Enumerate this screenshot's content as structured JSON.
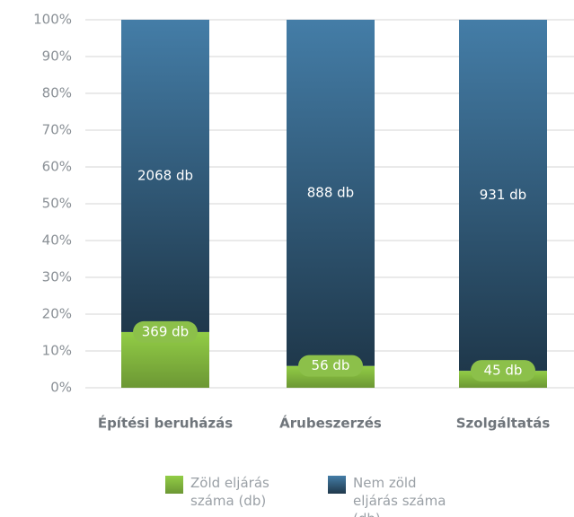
{
  "chart_data": {
    "type": "bar",
    "stacking": "percent",
    "categories": [
      "Építési beruházás",
      "Árubeszerzés",
      "Szolgáltatás"
    ],
    "series": [
      {
        "name": "Zöld eljárás száma (db)",
        "color": "#7fb23d",
        "values": [
          369,
          56,
          45
        ],
        "value_labels": [
          "369 db",
          "56 db",
          "45 db"
        ]
      },
      {
        "name": "Nem zöld eljárás száma (db)",
        "color": "#2f5673",
        "values": [
          2068,
          888,
          931
        ],
        "value_labels": [
          "2068 db",
          "888 db",
          "931 db"
        ]
      }
    ],
    "ylim": [
      0,
      100
    ],
    "yticks": [
      {
        "value": 0,
        "label": "0%"
      },
      {
        "value": 10,
        "label": "10%"
      },
      {
        "value": 20,
        "label": "20%"
      },
      {
        "value": 30,
        "label": "30%"
      },
      {
        "value": 40,
        "label": "40%"
      },
      {
        "value": 50,
        "label": "50%"
      },
      {
        "value": 60,
        "label": "60%"
      },
      {
        "value": 70,
        "label": "70%"
      },
      {
        "value": 80,
        "label": "80%"
      },
      {
        "value": 90,
        "label": "90%"
      },
      {
        "value": 100,
        "label": "100%"
      }
    ],
    "grid": true
  }
}
